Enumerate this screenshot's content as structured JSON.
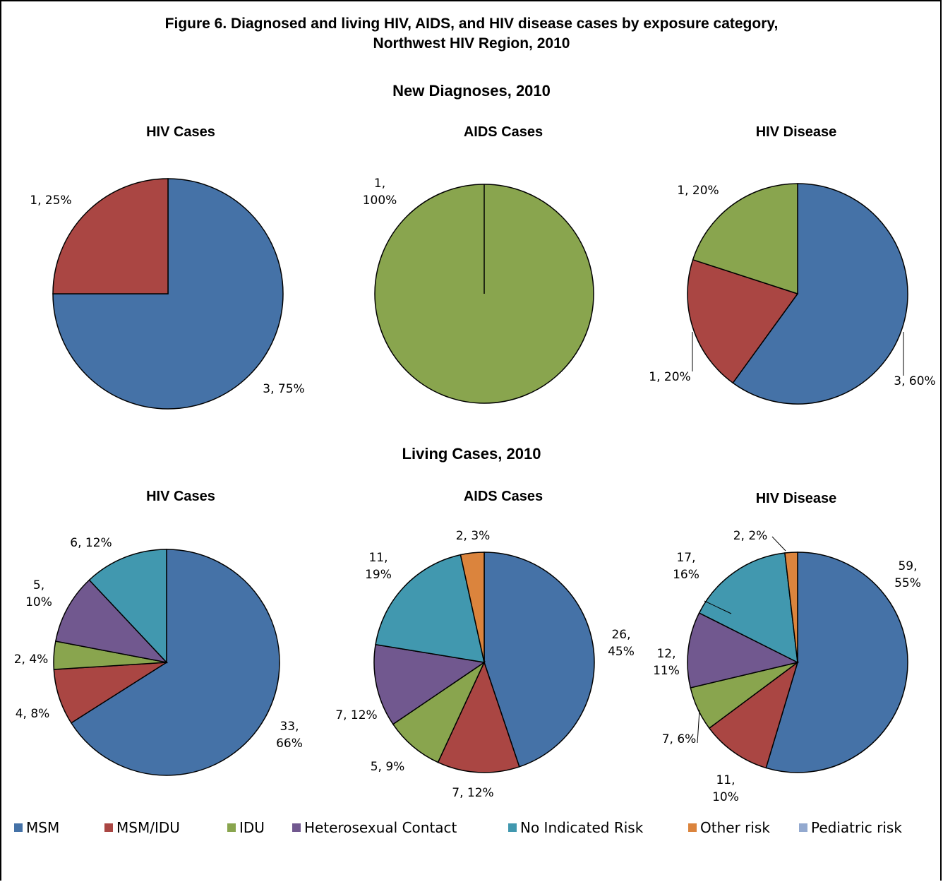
{
  "figure": {
    "title_line1": "Figure 6.  Diagnosed and living HIV, AIDS, and HIV disease cases by exposure category,",
    "title_line2": "Northwest HIV Region, 2010"
  },
  "sections": {
    "new": "New Diagnoses, 2010",
    "living": "Living Cases, 2010"
  },
  "legend": [
    {
      "name": "MSM",
      "color": "#4572a7"
    },
    {
      "name": "MSM/IDU",
      "color": "#aa4643"
    },
    {
      "name": "IDU",
      "color": "#89a54e"
    },
    {
      "name": "Heterosexual Contact",
      "color": "#71588f"
    },
    {
      "name": "No Indicated Risk",
      "color": "#4198af"
    },
    {
      "name": "Other risk",
      "color": "#db843d"
    },
    {
      "name": "Pediatric risk",
      "color": "#93a9cf"
    }
  ],
  "chart_data": [
    {
      "type": "pie",
      "section": "new",
      "title": "HIV Cases",
      "slices": [
        {
          "category": "MSM",
          "value": 3,
          "label": "3, 75%"
        },
        {
          "category": "MSM/IDU",
          "value": 1,
          "label": "1, 25%"
        }
      ]
    },
    {
      "type": "pie",
      "section": "new",
      "title": "AIDS Cases",
      "slices": [
        {
          "category": "IDU",
          "value": 1,
          "label": "1, 100%"
        }
      ]
    },
    {
      "type": "pie",
      "section": "new",
      "title": "HIV Disease",
      "slices": [
        {
          "category": "MSM",
          "value": 3,
          "label": "3, 60%"
        },
        {
          "category": "MSM/IDU",
          "value": 1,
          "label": "1, 20%"
        },
        {
          "category": "IDU",
          "value": 1,
          "label": "1, 20%"
        }
      ]
    },
    {
      "type": "pie",
      "section": "living",
      "title": "HIV Cases",
      "slices": [
        {
          "category": "MSM",
          "value": 33,
          "label": "33, 66%"
        },
        {
          "category": "MSM/IDU",
          "value": 4,
          "label": "4, 8%"
        },
        {
          "category": "IDU",
          "value": 2,
          "label": "2, 4%"
        },
        {
          "category": "Heterosexual Contact",
          "value": 5,
          "label": "5, 10%"
        },
        {
          "category": "No Indicated Risk",
          "value": 6,
          "label": "6, 12%"
        }
      ]
    },
    {
      "type": "pie",
      "section": "living",
      "title": "AIDS Cases",
      "slices": [
        {
          "category": "MSM",
          "value": 26,
          "label": "26, 45%"
        },
        {
          "category": "MSM/IDU",
          "value": 7,
          "label": "7, 12%"
        },
        {
          "category": "IDU",
          "value": 5,
          "label": "5, 9%"
        },
        {
          "category": "Heterosexual Contact",
          "value": 7,
          "label": "7, 12%"
        },
        {
          "category": "No Indicated Risk",
          "value": 11,
          "label": "11, 19%"
        },
        {
          "category": "Other risk",
          "value": 2,
          "label": "2, 3%"
        }
      ]
    },
    {
      "type": "pie",
      "section": "living",
      "title": "HIV Disease",
      "slices": [
        {
          "category": "MSM",
          "value": 59,
          "label": "59, 55%"
        },
        {
          "category": "MSM/IDU",
          "value": 11,
          "label": "11, 10%"
        },
        {
          "category": "IDU",
          "value": 7,
          "label": "7, 6%"
        },
        {
          "category": "Heterosexual Contact",
          "value": 12,
          "label": "12, 11%"
        },
        {
          "category": "No Indicated Risk",
          "value": 17,
          "label": "17, 16%"
        },
        {
          "category": "Other risk",
          "value": 2,
          "label": "2, 2%"
        }
      ]
    }
  ]
}
